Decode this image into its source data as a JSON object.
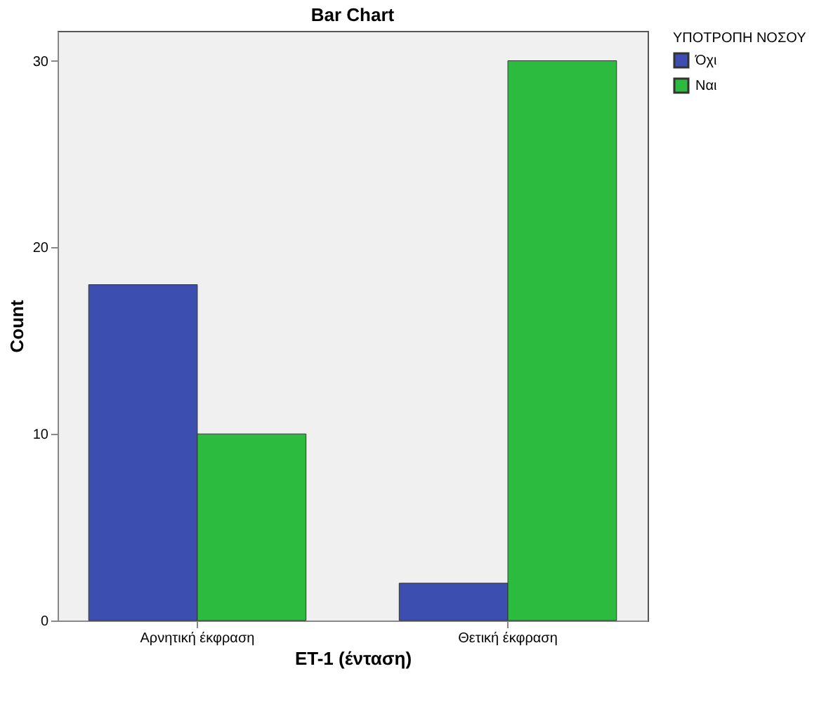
{
  "chart_data": {
    "type": "bar",
    "title": "Bar Chart",
    "xlabel": "ΕΤ-1 (ένταση)",
    "ylabel": "Count",
    "legend_title": "ΥΠΟΤΡΟΠΗ ΝΟΣΟΥ",
    "categories": [
      "Αρνητική έκφραση",
      "Θετική έκφραση"
    ],
    "series": [
      {
        "name": "Όχι",
        "color": "#3c4fb0",
        "values": [
          18,
          2
        ]
      },
      {
        "name": "Ναι",
        "color": "#2dbb3f",
        "values": [
          10,
          30
        ]
      }
    ],
    "ylim": [
      0,
      31.6
    ],
    "yticks": [
      0,
      10,
      20,
      30
    ],
    "grid": false,
    "legend": "top right"
  }
}
